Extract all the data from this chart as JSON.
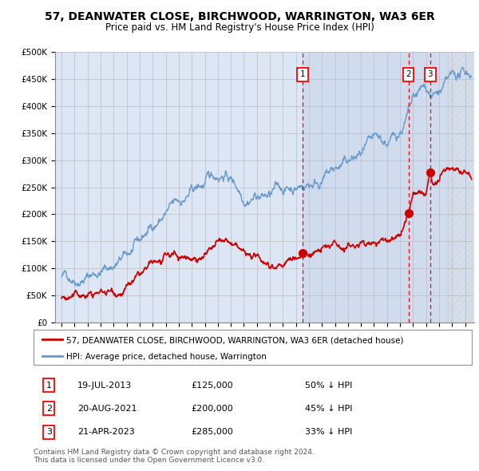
{
  "title": "57, DEANWATER CLOSE, BIRCHWOOD, WARRINGTON, WA3 6ER",
  "subtitle": "Price paid vs. HM Land Registry's House Price Index (HPI)",
  "ylim": [
    0,
    500000
  ],
  "yticks": [
    0,
    50000,
    100000,
    150000,
    200000,
    250000,
    300000,
    350000,
    400000,
    450000,
    500000
  ],
  "ytick_labels": [
    "£0",
    "£50K",
    "£100K",
    "£150K",
    "£200K",
    "£250K",
    "£300K",
    "£350K",
    "£400K",
    "£450K",
    "£500K"
  ],
  "xlim_start": 1994.5,
  "xlim_end": 2026.7,
  "transactions": [
    {
      "num": 1,
      "date": "19-JUL-2013",
      "price": 125000,
      "pct": "50% ↓ HPI",
      "x_year": 2013.54
    },
    {
      "num": 2,
      "date": "20-AUG-2021",
      "price": 200000,
      "pct": "45% ↓ HPI",
      "x_year": 2021.64
    },
    {
      "num": 3,
      "date": "21-APR-2023",
      "price": 285000,
      "pct": "33% ↓ HPI",
      "x_year": 2023.31
    }
  ],
  "legend_property_label": "57, DEANWATER CLOSE, BIRCHWOOD, WARRINGTON, WA3 6ER (detached house)",
  "legend_hpi_label": "HPI: Average price, detached house, Warrington",
  "property_color": "#cc0000",
  "hpi_color": "#6699cc",
  "background_color": "#dde6f5",
  "plot_bg": "#ffffff",
  "grid_color": "#bbbbbb",
  "shaded_start": 2013.54,
  "hatch_start": 2024.7,
  "copyright_text": "Contains HM Land Registry data © Crown copyright and database right 2024.\nThis data is licensed under the Open Government Licence v3.0.",
  "hpi_keypoints": [
    [
      1995.0,
      85000
    ],
    [
      1996,
      88000
    ],
    [
      1997,
      93000
    ],
    [
      1998,
      100000
    ],
    [
      1999,
      108000
    ],
    [
      2000,
      120000
    ],
    [
      2001,
      140000
    ],
    [
      2002,
      175000
    ],
    [
      2003,
      200000
    ],
    [
      2004,
      215000
    ],
    [
      2005,
      235000
    ],
    [
      2006,
      250000
    ],
    [
      2007.0,
      270000
    ],
    [
      2007.5,
      278000
    ],
    [
      2008.0,
      268000
    ],
    [
      2008.5,
      255000
    ],
    [
      2009.0,
      240000
    ],
    [
      2009.5,
      245000
    ],
    [
      2010.0,
      248000
    ],
    [
      2010.5,
      242000
    ],
    [
      2011.0,
      238000
    ],
    [
      2011.5,
      243000
    ],
    [
      2012.0,
      245000
    ],
    [
      2012.5,
      248000
    ],
    [
      2013.0,
      252000
    ],
    [
      2013.54,
      255000
    ],
    [
      2014.0,
      260000
    ],
    [
      2015.0,
      270000
    ],
    [
      2016.0,
      280000
    ],
    [
      2017.0,
      290000
    ],
    [
      2018.0,
      300000
    ],
    [
      2019.0,
      310000
    ],
    [
      2020.0,
      315000
    ],
    [
      2020.5,
      325000
    ],
    [
      2021.0,
      345000
    ],
    [
      2021.5,
      370000
    ],
    [
      2022.0,
      395000
    ],
    [
      2022.5,
      410000
    ],
    [
      2023.0,
      420000
    ],
    [
      2023.31,
      415000
    ],
    [
      2023.5,
      410000
    ],
    [
      2024.0,
      415000
    ],
    [
      2024.5,
      425000
    ],
    [
      2025.0,
      435000
    ],
    [
      2025.5,
      442000
    ],
    [
      2026.0,
      448000
    ],
    [
      2026.5,
      455000
    ]
  ],
  "prop_keypoints": [
    [
      1995.0,
      45000
    ],
    [
      1996,
      46000
    ],
    [
      1997,
      48000
    ],
    [
      1998,
      52000
    ],
    [
      1999,
      58000
    ],
    [
      2000,
      67000
    ],
    [
      2001,
      80000
    ],
    [
      2002,
      95000
    ],
    [
      2003,
      105000
    ],
    [
      2004,
      112000
    ],
    [
      2005,
      120000
    ],
    [
      2006,
      130000
    ],
    [
      2007.0,
      138000
    ],
    [
      2007.5,
      142000
    ],
    [
      2008.0,
      135000
    ],
    [
      2008.5,
      128000
    ],
    [
      2009.0,
      118000
    ],
    [
      2009.5,
      112000
    ],
    [
      2010.0,
      108000
    ],
    [
      2010.5,
      110000
    ],
    [
      2011.0,
      108000
    ],
    [
      2011.5,
      112000
    ],
    [
      2012.0,
      114000
    ],
    [
      2012.5,
      118000
    ],
    [
      2013.0,
      120000
    ],
    [
      2013.54,
      125000
    ],
    [
      2014.0,
      128000
    ],
    [
      2015.0,
      133000
    ],
    [
      2016.0,
      138000
    ],
    [
      2017.0,
      143000
    ],
    [
      2018.0,
      148000
    ],
    [
      2019.0,
      153000
    ],
    [
      2020.0,
      155000
    ],
    [
      2020.5,
      158000
    ],
    [
      2021.0,
      162000
    ],
    [
      2021.64,
      200000
    ],
    [
      2022.0,
      235000
    ],
    [
      2022.3,
      240000
    ],
    [
      2023.0,
      238000
    ],
    [
      2023.31,
      285000
    ],
    [
      2023.5,
      265000
    ],
    [
      2023.8,
      258000
    ],
    [
      2024.0,
      262000
    ],
    [
      2024.5,
      268000
    ],
    [
      2025.0,
      272000
    ],
    [
      2025.5,
      275000
    ],
    [
      2026.0,
      278000
    ],
    [
      2026.5,
      280000
    ]
  ]
}
